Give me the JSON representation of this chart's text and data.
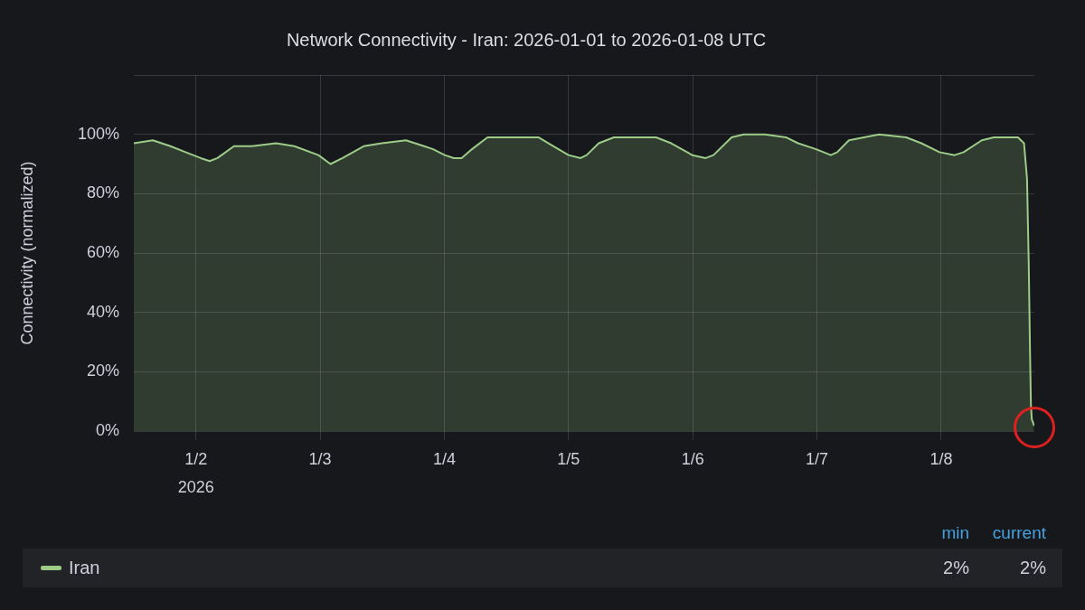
{
  "chart_data": {
    "type": "area",
    "title": "Network Connectivity - Iran: 2026-01-01 to 2026-01-08 UTC",
    "ylabel": "Connectivity (normalized)",
    "x": [
      "2026-01-01T12:00",
      "2026-01-01T15:40",
      "2026-01-01T19:05",
      "2026-01-01T22:00",
      "2026-01-02T00:55",
      "2026-01-02T02:40",
      "2026-01-02T04:10",
      "2026-01-02T07:20",
      "2026-01-02T10:50",
      "2026-01-02T15:30",
      "2026-01-02T19:00",
      "2026-01-02T23:40",
      "2026-01-03T02:00",
      "2026-01-03T04:20",
      "2026-01-03T08:25",
      "2026-01-03T11:55",
      "2026-01-03T16:35",
      "2026-01-03T20:05",
      "2026-01-03T21:50",
      "2026-01-04T00:05",
      "2026-01-04T01:50",
      "2026-01-04T03:20",
      "2026-01-04T05:20",
      "2026-01-04T08:20",
      "2026-01-04T11:50",
      "2026-01-04T15:00",
      "2026-01-04T18:10",
      "2026-01-04T21:05",
      "2026-01-05T00:00",
      "2026-01-05T02:20",
      "2026-01-05T03:30",
      "2026-01-05T05:50",
      "2026-01-05T08:45",
      "2026-01-05T11:05",
      "2026-01-05T14:35",
      "2026-01-05T16:55",
      "2026-01-05T19:50",
      "2026-01-05T23:55",
      "2026-01-06T02:30",
      "2026-01-06T04:00",
      "2026-01-06T07:30",
      "2026-01-06T09:50",
      "2026-01-06T13:55",
      "2026-01-06T18:00",
      "2026-01-06T20:20",
      "2026-01-06T23:50",
      "2026-01-07T02:40",
      "2026-01-07T03:55",
      "2026-01-07T06:10",
      "2026-01-07T09:05",
      "2026-01-07T12:00",
      "2026-01-07T17:15",
      "2026-01-07T20:10",
      "2026-01-07T23:40",
      "2026-01-08T02:35",
      "2026-01-08T04:20",
      "2026-01-08T07:50",
      "2026-01-08T10:10",
      "2026-01-08T14:50",
      "2026-01-08T16:00",
      "2026-01-08T16:35",
      "2026-01-08T16:55",
      "2026-01-08T17:10",
      "2026-01-08T17:20",
      "2026-01-08T17:30",
      "2026-01-08T17:55"
    ],
    "series": [
      {
        "name": "Iran",
        "color": "#9ccc88",
        "values": [
          97,
          98,
          96,
          94,
          92,
          91,
          92,
          96,
          96,
          97,
          96,
          93,
          90,
          92,
          96,
          97,
          98,
          96,
          95,
          93,
          92,
          92,
          95,
          99,
          99,
          99,
          99,
          96,
          93,
          92,
          93,
          97,
          99,
          99,
          99,
          99,
          97,
          93,
          92,
          93,
          99,
          100,
          100,
          99,
          97,
          95,
          93,
          94,
          98,
          99,
          100,
          99,
          97,
          94,
          93,
          94,
          98,
          99,
          99,
          97,
          85,
          56,
          26,
          9,
          4,
          2
        ]
      }
    ],
    "xlim": [
      "2026-01-01T12:00",
      "2026-01-08T18:00"
    ],
    "xticks": [
      {
        "value": "2026-01-02",
        "label": "1/2\n2026"
      },
      {
        "value": "2026-01-03",
        "label": "1/3"
      },
      {
        "value": "2026-01-04",
        "label": "1/4"
      },
      {
        "value": "2026-01-05",
        "label": "1/5"
      },
      {
        "value": "2026-01-06",
        "label": "1/6"
      },
      {
        "value": "2026-01-07",
        "label": "1/7"
      },
      {
        "value": "2026-01-08",
        "label": "1/8"
      }
    ],
    "ylim": [
      0,
      120
    ],
    "yticks": [
      {
        "value": 0,
        "label": "0%"
      },
      {
        "value": 20,
        "label": "20%"
      },
      {
        "value": 40,
        "label": "40%"
      },
      {
        "value": 60,
        "label": "60%"
      },
      {
        "value": 80,
        "label": "80%"
      },
      {
        "value": 100,
        "label": "100%"
      },
      {
        "value": 120,
        "label": null
      }
    ],
    "grid": true,
    "legend": "bottom",
    "marker": "none",
    "line_style": "solid",
    "annotations": [
      "min",
      "current",
      "2%",
      "2%"
    ]
  }
}
